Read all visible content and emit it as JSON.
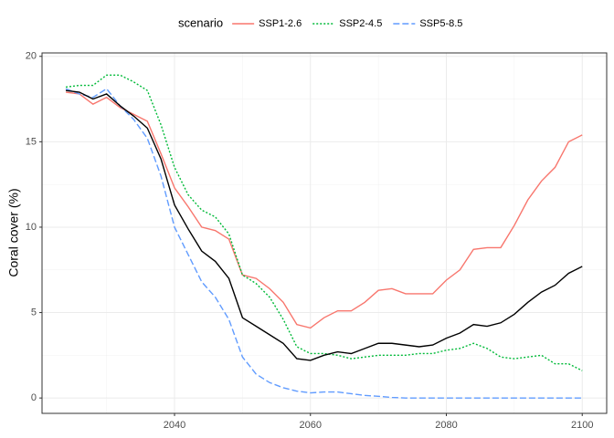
{
  "chart_data": {
    "type": "line",
    "y_label": "Coral cover (%)",
    "legend_title": "scenario",
    "legend": "top",
    "grid": true,
    "x": [
      2024,
      2026,
      2028,
      2030,
      2032,
      2034,
      2036,
      2038,
      2040,
      2042,
      2044,
      2046,
      2048,
      2050,
      2052,
      2054,
      2056,
      2058,
      2060,
      2062,
      2064,
      2066,
      2068,
      2070,
      2072,
      2074,
      2076,
      2078,
      2080,
      2082,
      2084,
      2086,
      2088,
      2090,
      2092,
      2094,
      2096,
      2098,
      2100
    ],
    "xlim": [
      2020.5,
      2103.6
    ],
    "xticks": [
      2040,
      2060,
      2080,
      2100
    ],
    "x_minor_ticks": [
      2030,
      2050,
      2070,
      2090
    ],
    "ylim": [
      -0.9,
      20.2
    ],
    "yticks": [
      0,
      5,
      10,
      15,
      20
    ],
    "y_minor_ticks": [
      2.5,
      7.5,
      12.5,
      17.5
    ],
    "series": [
      {
        "name": "SSP1-2.6",
        "color": "#F8766D",
        "dash": "none",
        "values": [
          17.9,
          17.8,
          17.2,
          17.6,
          17.0,
          16.6,
          16.2,
          14.3,
          12.3,
          11.2,
          10.0,
          9.8,
          9.3,
          7.2,
          7.0,
          6.4,
          5.6,
          4.3,
          4.1,
          4.7,
          5.1,
          5.1,
          5.6,
          6.3,
          6.4,
          6.1,
          6.1,
          6.1,
          6.9,
          7.5,
          8.7,
          8.8,
          8.8,
          10.1,
          11.6,
          12.7,
          13.5,
          15.0,
          15.4
        ]
      },
      {
        "name": "SSP2-4.5",
        "color": "#00BA38",
        "dash": "2,2",
        "values": [
          18.2,
          18.3,
          18.3,
          18.9,
          18.9,
          18.5,
          18.0,
          16.0,
          13.5,
          11.9,
          11.0,
          10.6,
          9.6,
          7.2,
          6.7,
          5.9,
          4.6,
          3.0,
          2.6,
          2.6,
          2.5,
          2.3,
          2.4,
          2.5,
          2.5,
          2.5,
          2.6,
          2.6,
          2.8,
          2.9,
          3.2,
          2.9,
          2.4,
          2.3,
          2.4,
          2.5,
          2.0,
          2.0,
          1.6
        ]
      },
      {
        "name": "SSP5-8.5",
        "color": "#619CFF",
        "dash": "7,3",
        "values": [
          18.1,
          17.8,
          17.6,
          18.1,
          17.1,
          16.3,
          15.2,
          13.0,
          10.0,
          8.4,
          6.8,
          5.9,
          4.6,
          2.4,
          1.4,
          0.9,
          0.6,
          0.4,
          0.3,
          0.35,
          0.35,
          0.25,
          0.15,
          0.1,
          0.03,
          0,
          0,
          0,
          0,
          0,
          0,
          0,
          0,
          0,
          0,
          0,
          0,
          0,
          0
        ]
      },
      {
        "color": "#000000",
        "dash": "none",
        "values": [
          18.0,
          17.9,
          17.5,
          17.8,
          17.1,
          16.5,
          15.8,
          14.0,
          11.3,
          9.9,
          8.6,
          8.0,
          7.0,
          4.7,
          4.2,
          3.7,
          3.2,
          2.3,
          2.2,
          2.5,
          2.7,
          2.6,
          2.9,
          3.2,
          3.2,
          3.1,
          3.0,
          3.1,
          3.5,
          3.8,
          4.3,
          4.2,
          4.4,
          4.9,
          5.6,
          6.2,
          6.6,
          7.3,
          7.7
        ]
      }
    ]
  }
}
